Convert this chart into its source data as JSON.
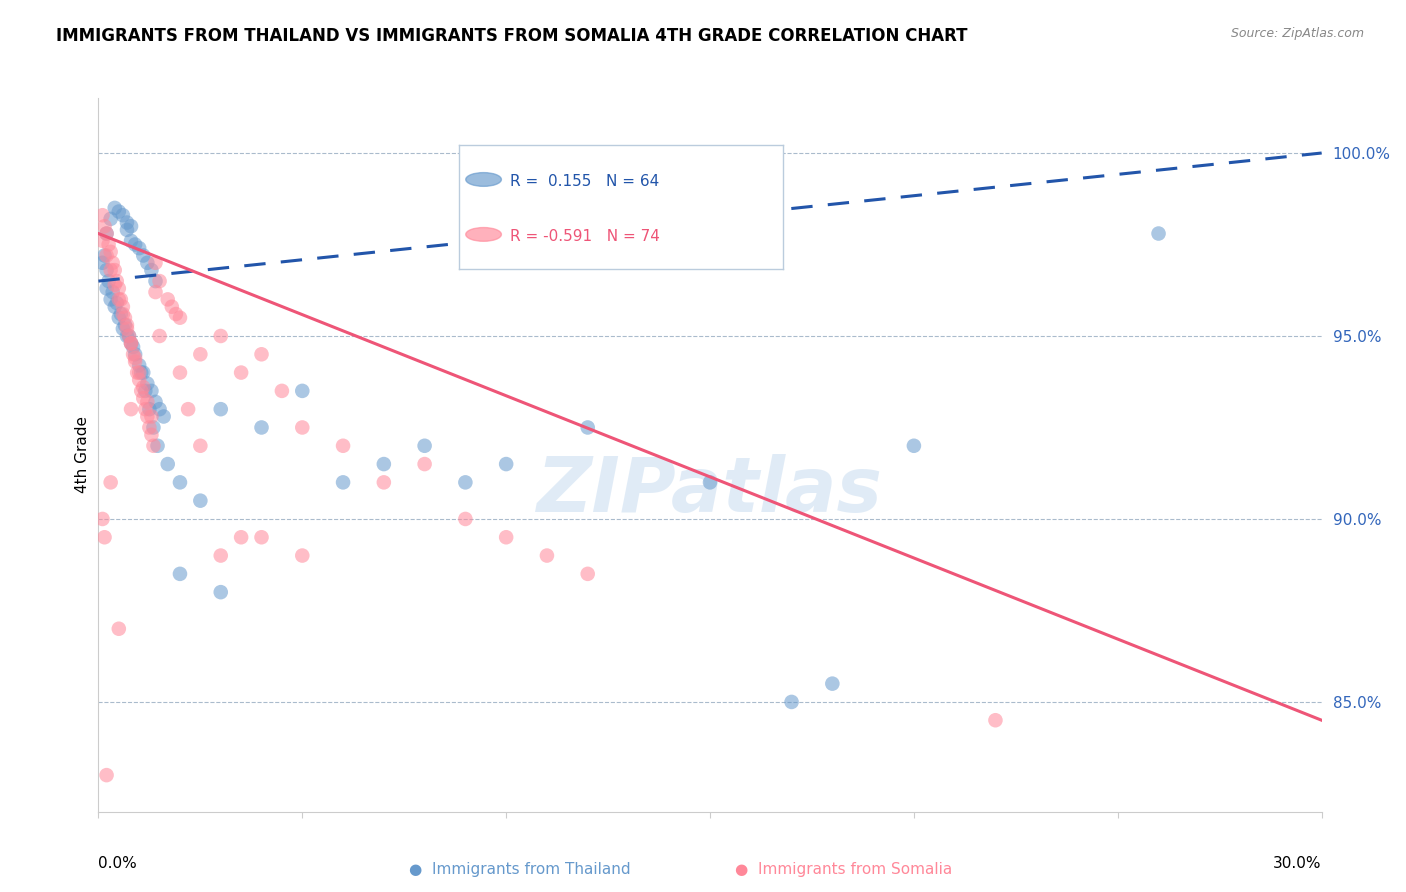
{
  "title": "IMMIGRANTS FROM THAILAND VS IMMIGRANTS FROM SOMALIA 4TH GRADE CORRELATION CHART",
  "source": "Source: ZipAtlas.com",
  "ylabel": "4th Grade",
  "yticks": [
    100.0,
    95.0,
    90.0,
    85.0
  ],
  "ytick_labels": [
    "100.0%",
    "95.0%",
    "90.0%",
    "85.0%"
  ],
  "xmin": 0.0,
  "xmax": 30.0,
  "ymin": 82.0,
  "ymax": 101.5,
  "watermark": "ZIPatlas",
  "legend_thailand_r": "0.155",
  "legend_thailand_n": "64",
  "legend_somalia_r": "-0.591",
  "legend_somalia_n": "74",
  "thailand_color": "#6699CC",
  "somalia_color": "#FF8899",
  "trend_thailand_color": "#2255AA",
  "trend_somalia_color": "#EE5577",
  "thailand_points": [
    [
      0.2,
      97.8
    ],
    [
      0.3,
      98.2
    ],
    [
      0.4,
      98.5
    ],
    [
      0.5,
      98.4
    ],
    [
      0.6,
      98.3
    ],
    [
      0.7,
      98.1
    ],
    [
      0.7,
      97.9
    ],
    [
      0.8,
      98.0
    ],
    [
      0.8,
      97.6
    ],
    [
      0.9,
      97.5
    ],
    [
      1.0,
      97.4
    ],
    [
      1.1,
      97.2
    ],
    [
      1.2,
      97.0
    ],
    [
      1.3,
      96.8
    ],
    [
      1.4,
      96.5
    ],
    [
      0.2,
      96.3
    ],
    [
      0.3,
      96.0
    ],
    [
      0.4,
      95.8
    ],
    [
      0.5,
      95.5
    ],
    [
      0.6,
      95.2
    ],
    [
      0.7,
      95.0
    ],
    [
      0.8,
      94.8
    ],
    [
      0.9,
      94.5
    ],
    [
      1.0,
      94.2
    ],
    [
      1.1,
      94.0
    ],
    [
      1.2,
      93.7
    ],
    [
      1.3,
      93.5
    ],
    [
      1.4,
      93.2
    ],
    [
      1.5,
      93.0
    ],
    [
      1.6,
      92.8
    ],
    [
      0.1,
      97.0
    ],
    [
      0.15,
      97.2
    ],
    [
      0.2,
      96.8
    ],
    [
      0.25,
      96.5
    ],
    [
      0.35,
      96.2
    ],
    [
      0.45,
      95.9
    ],
    [
      0.55,
      95.6
    ],
    [
      0.65,
      95.3
    ],
    [
      0.75,
      95.0
    ],
    [
      0.85,
      94.7
    ],
    [
      1.05,
      94.0
    ],
    [
      1.15,
      93.5
    ],
    [
      1.25,
      93.0
    ],
    [
      1.35,
      92.5
    ],
    [
      1.45,
      92.0
    ],
    [
      1.7,
      91.5
    ],
    [
      2.0,
      91.0
    ],
    [
      2.5,
      90.5
    ],
    [
      3.0,
      93.0
    ],
    [
      4.0,
      92.5
    ],
    [
      5.0,
      93.5
    ],
    [
      6.0,
      91.0
    ],
    [
      7.0,
      91.5
    ],
    [
      8.0,
      92.0
    ],
    [
      9.0,
      91.0
    ],
    [
      10.0,
      91.5
    ],
    [
      12.0,
      92.5
    ],
    [
      15.0,
      91.0
    ],
    [
      17.0,
      85.0
    ],
    [
      18.0,
      85.5
    ],
    [
      20.0,
      92.0
    ],
    [
      26.0,
      97.8
    ],
    [
      2.0,
      88.5
    ],
    [
      3.0,
      88.0
    ]
  ],
  "somalia_points": [
    [
      0.1,
      98.3
    ],
    [
      0.15,
      98.0
    ],
    [
      0.2,
      97.8
    ],
    [
      0.25,
      97.5
    ],
    [
      0.3,
      97.3
    ],
    [
      0.35,
      97.0
    ],
    [
      0.4,
      96.8
    ],
    [
      0.45,
      96.5
    ],
    [
      0.5,
      96.3
    ],
    [
      0.55,
      96.0
    ],
    [
      0.6,
      95.8
    ],
    [
      0.65,
      95.5
    ],
    [
      0.7,
      95.3
    ],
    [
      0.75,
      95.0
    ],
    [
      0.8,
      94.8
    ],
    [
      0.85,
      94.5
    ],
    [
      0.9,
      94.3
    ],
    [
      0.95,
      94.0
    ],
    [
      1.0,
      93.8
    ],
    [
      1.05,
      93.5
    ],
    [
      1.1,
      93.3
    ],
    [
      1.15,
      93.0
    ],
    [
      1.2,
      92.8
    ],
    [
      1.25,
      92.5
    ],
    [
      1.3,
      92.3
    ],
    [
      1.35,
      92.0
    ],
    [
      0.1,
      97.6
    ],
    [
      0.2,
      97.2
    ],
    [
      0.3,
      96.8
    ],
    [
      0.4,
      96.4
    ],
    [
      0.5,
      96.0
    ],
    [
      0.6,
      95.6
    ],
    [
      0.7,
      95.2
    ],
    [
      0.8,
      94.8
    ],
    [
      0.9,
      94.4
    ],
    [
      1.0,
      94.0
    ],
    [
      1.1,
      93.6
    ],
    [
      1.2,
      93.2
    ],
    [
      1.3,
      92.8
    ],
    [
      1.4,
      97.0
    ],
    [
      1.5,
      96.5
    ],
    [
      2.0,
      95.5
    ],
    [
      2.5,
      94.5
    ],
    [
      3.0,
      95.0
    ],
    [
      3.5,
      89.5
    ],
    [
      4.0,
      94.5
    ],
    [
      4.5,
      93.5
    ],
    [
      5.0,
      92.5
    ],
    [
      6.0,
      92.0
    ],
    [
      7.0,
      91.0
    ],
    [
      8.0,
      91.5
    ],
    [
      9.0,
      90.0
    ],
    [
      10.0,
      89.5
    ],
    [
      11.0,
      89.0
    ],
    [
      12.0,
      88.5
    ],
    [
      0.1,
      90.0
    ],
    [
      0.15,
      89.5
    ],
    [
      1.7,
      96.0
    ],
    [
      1.8,
      95.8
    ],
    [
      1.9,
      95.6
    ],
    [
      2.2,
      93.0
    ],
    [
      2.5,
      92.0
    ],
    [
      3.5,
      94.0
    ],
    [
      0.3,
      91.0
    ],
    [
      0.8,
      93.0
    ],
    [
      1.4,
      96.2
    ],
    [
      1.5,
      95.0
    ],
    [
      2.0,
      94.0
    ],
    [
      5.0,
      89.0
    ],
    [
      4.0,
      89.5
    ],
    [
      22.0,
      84.5
    ],
    [
      3.0,
      89.0
    ],
    [
      0.5,
      87.0
    ],
    [
      0.2,
      83.0
    ]
  ],
  "trend_thailand_x0": 0.0,
  "trend_thailand_y0": 96.5,
  "trend_thailand_x1": 30.0,
  "trend_thailand_y1": 100.0,
  "trend_somalia_x0": 0.0,
  "trend_somalia_y0": 97.8,
  "trend_somalia_x1": 30.0,
  "trend_somalia_y1": 84.5
}
